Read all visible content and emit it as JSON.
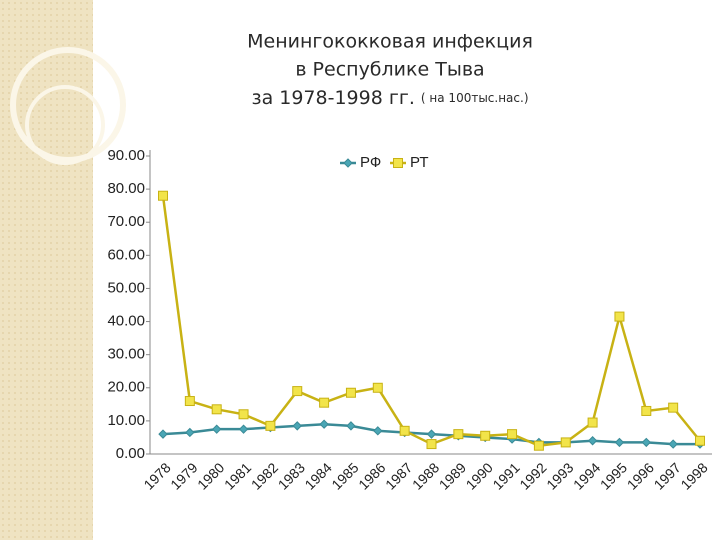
{
  "chart_data": {
    "type": "line",
    "title": [
      "Менингококковая инфекция",
      "в Республике Тыва",
      "за 1978-1998 гг."
    ],
    "subtitle": "( на 100тыс.нас.)",
    "categories": [
      "1978",
      "1979",
      "1980",
      "1981",
      "1982",
      "1983",
      "1984",
      "1985",
      "1986",
      "1987",
      "1988",
      "1989",
      "1990",
      "1991",
      "1992",
      "1993",
      "1994",
      "1995",
      "1996",
      "1997",
      "1998"
    ],
    "series": [
      {
        "name": "РФ",
        "color": "#4aa6b5",
        "values": [
          6,
          6.5,
          7.5,
          7.5,
          8,
          8.5,
          9,
          8.5,
          7,
          6.5,
          6,
          5.5,
          5,
          4.5,
          3.5,
          3.5,
          4,
          3.5,
          3.5,
          3,
          3
        ]
      },
      {
        "name": "РТ",
        "color": "#f2e44a",
        "values": [
          78,
          16,
          13.5,
          12,
          8.5,
          19,
          15.5,
          18.5,
          20,
          7,
          3,
          6,
          5.5,
          6,
          2.5,
          3.5,
          9.5,
          41.5,
          13,
          14,
          4
        ]
      }
    ],
    "ylim": [
      0,
      90
    ],
    "yticks": [
      {
        "value": 0,
        "label": "0.00"
      },
      {
        "value": 10,
        "label": "10.00"
      },
      {
        "value": 20,
        "label": "20.00"
      },
      {
        "value": 30,
        "label": "30.00"
      },
      {
        "value": 40,
        "label": "40.00"
      },
      {
        "value": 50,
        "label": "50.00"
      },
      {
        "value": 60,
        "label": "60.00"
      },
      {
        "value": 70,
        "label": "70.00"
      },
      {
        "value": 80,
        "label": "80.00"
      },
      {
        "value": 90,
        "label": "90.00"
      }
    ],
    "grid": false,
    "legend": "top"
  }
}
